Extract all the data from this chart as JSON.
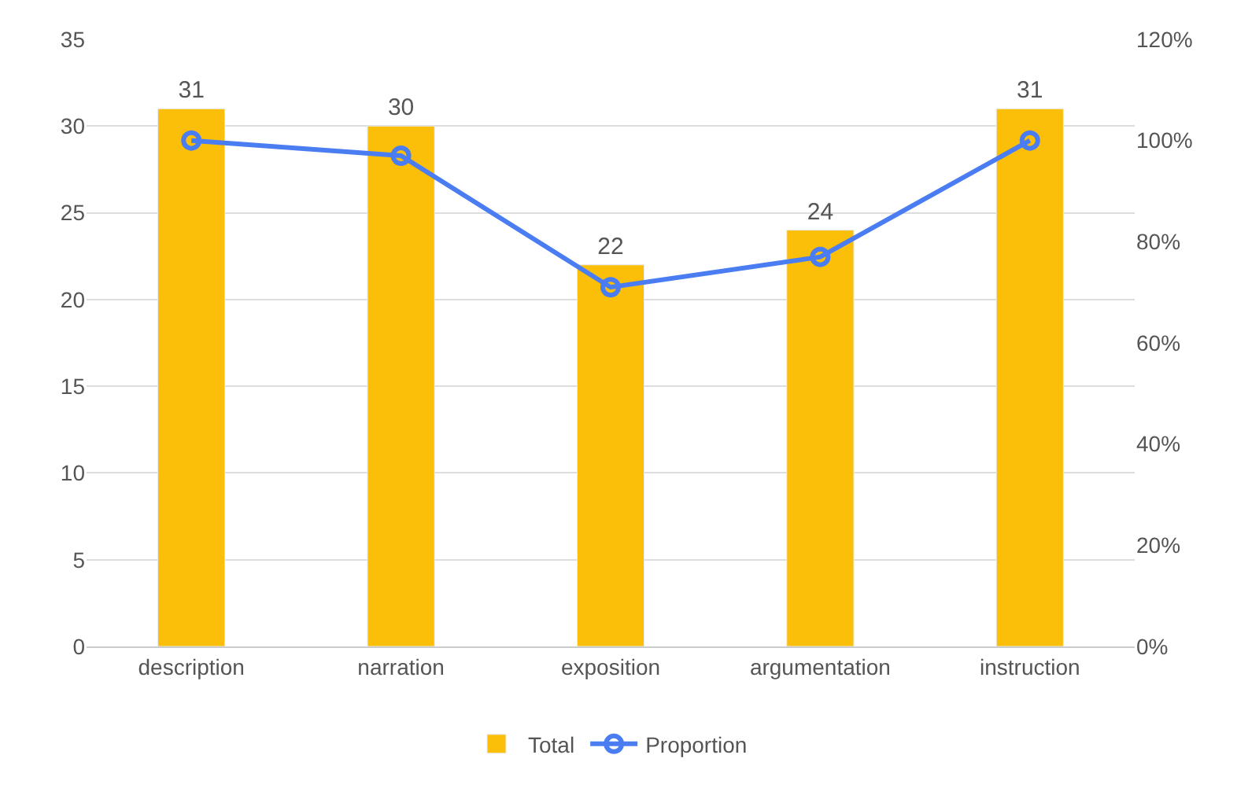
{
  "chart_data": {
    "type": "bar",
    "categories": [
      "description",
      "narration",
      "exposition",
      "argumentation",
      "instruction"
    ],
    "series": [
      {
        "name": "Total",
        "color": "#fbbf0a",
        "values": [
          31,
          30,
          22,
          24,
          31
        ],
        "value_labels": [
          "31",
          "30",
          "22",
          "24",
          "31"
        ]
      },
      {
        "name": "Proportion",
        "type": "line",
        "axis": "y2",
        "color": "#4a7cf2",
        "values": [
          100,
          97,
          71,
          77,
          100
        ],
        "marker": "circle"
      }
    ],
    "ylim": [
      0,
      35
    ],
    "yticks": [
      0,
      5,
      10,
      15,
      20,
      25,
      30,
      35
    ],
    "y2lim": [
      0,
      120
    ],
    "y2ticks": [
      {
        "value": 0,
        "label": "0%"
      },
      {
        "value": 20,
        "label": "20%"
      },
      {
        "value": 40,
        "label": "40%"
      },
      {
        "value": 60,
        "label": "60%"
      },
      {
        "value": 80,
        "label": "80%"
      },
      {
        "value": 100,
        "label": "100%"
      },
      {
        "value": 120,
        "label": "120%"
      }
    ],
    "grid": "y",
    "legend": "bottom"
  }
}
